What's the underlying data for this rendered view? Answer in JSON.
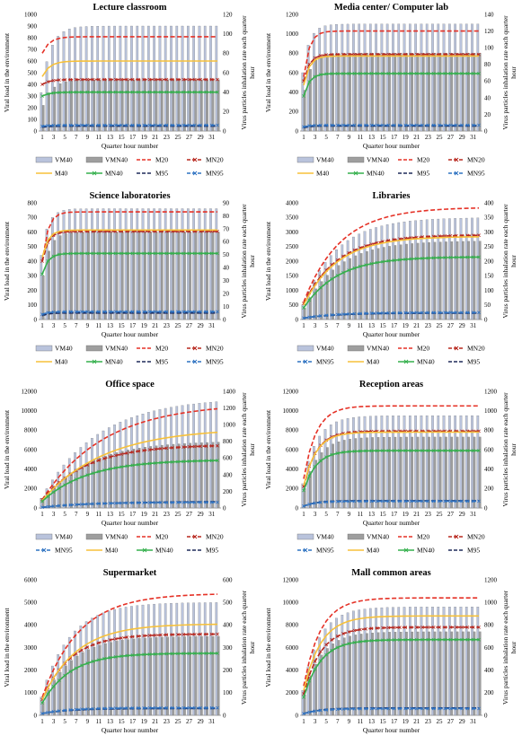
{
  "chart_data": [
    {
      "type": "bar",
      "title": "Lecture classroom",
      "xlabel": "Quarter hour number",
      "ylabel": "Viral load in the environment",
      "y2label": "Virus particles inhalation rate each quarter hour",
      "x_ticks": [
        "1",
        "3",
        "5",
        "7",
        "9",
        "11",
        "13",
        "15",
        "17",
        "19",
        "21",
        "23",
        "25",
        "27",
        "29",
        "31"
      ],
      "ylim": [
        0,
        1000
      ],
      "yticks": [
        0,
        100,
        200,
        300,
        400,
        500,
        600,
        700,
        800,
        900,
        1000
      ],
      "y2lim": [
        0,
        120
      ],
      "y2ticks": [
        0,
        20,
        40,
        60,
        80,
        100,
        120
      ],
      "legend_rows": [
        [
          "VM40",
          "VMN40",
          "M20",
          "MN20"
        ],
        [
          "M40",
          "MN40",
          "M95",
          "MN95"
        ]
      ],
      "bars": [
        {
          "name": "VM40",
          "start": 330,
          "plateau": 900,
          "rate": 1.6
        },
        {
          "name": "VMN40",
          "start": 220,
          "plateau": 440,
          "rate": 1.6
        }
      ],
      "lines": [
        {
          "name": "M20",
          "start": 80,
          "plateau": 97,
          "rate": 1.3
        },
        {
          "name": "MN20",
          "start": 48,
          "plateau": 53,
          "rate": 1.3
        },
        {
          "name": "M40",
          "start": 56,
          "plateau": 72,
          "rate": 1.3
        },
        {
          "name": "MN40",
          "start": 36,
          "plateau": 40,
          "rate": 1.3
        },
        {
          "name": "M95",
          "start": 4,
          "plateau": 5,
          "rate": 1.3
        },
        {
          "name": "MN95",
          "start": 5,
          "plateau": 6,
          "rate": 1.3
        }
      ]
    },
    {
      "type": "bar",
      "title": "Media center/ Computer lab",
      "xlabel": "Quarter hour number",
      "ylabel": "Viral load in the environment",
      "y2label": "Virus particles inhalation rate each quarter hour",
      "x_ticks": [
        "1",
        "3",
        "5",
        "7",
        "9",
        "11",
        "13",
        "15",
        "17",
        "19",
        "21",
        "23",
        "25",
        "27",
        "29",
        "31"
      ],
      "ylim": [
        0,
        1200
      ],
      "yticks": [
        0,
        200,
        400,
        600,
        800,
        1000,
        1200
      ],
      "y2lim": [
        0,
        140
      ],
      "y2ticks": [
        0,
        20,
        40,
        60,
        80,
        100,
        120,
        140
      ],
      "legend_rows": [
        [
          "VM40",
          "VMN40",
          "M20",
          "MN20"
        ],
        [
          "M40",
          "MN40",
          "M95",
          "MN95"
        ]
      ],
      "bars": [
        {
          "name": "VM40",
          "start": 600,
          "plateau": 1100,
          "rate": 1.2
        },
        {
          "name": "VMN40",
          "start": 420,
          "plateau": 800,
          "rate": 1.2
        }
      ],
      "lines": [
        {
          "name": "M20",
          "start": 65,
          "plateau": 120,
          "rate": 1.0
        },
        {
          "name": "MN20",
          "start": 60,
          "plateau": 92,
          "rate": 1.0
        },
        {
          "name": "M40",
          "start": 55,
          "plateau": 90,
          "rate": 1.0
        },
        {
          "name": "MN40",
          "start": 42,
          "plateau": 69,
          "rate": 1.0
        },
        {
          "name": "M95",
          "start": 4,
          "plateau": 6,
          "rate": 1.0
        },
        {
          "name": "MN95",
          "start": 5,
          "plateau": 7,
          "rate": 1.0
        }
      ]
    },
    {
      "type": "bar",
      "title": "Science laboratories",
      "xlabel": "Quarter hour number",
      "ylabel": "Viral load in the environment",
      "y2label": "Virus particles inhalation rate each quarter hour",
      "x_ticks": [
        "1",
        "3",
        "5",
        "7",
        "9",
        "11",
        "13",
        "15",
        "17",
        "19",
        "21",
        "23",
        "25",
        "27",
        "29",
        "31"
      ],
      "ylim": [
        0,
        800
      ],
      "yticks": [
        0,
        100,
        200,
        300,
        400,
        500,
        600,
        700,
        800
      ],
      "y2lim": [
        0,
        90
      ],
      "y2ticks": [
        0,
        10,
        20,
        30,
        40,
        50,
        60,
        70,
        80,
        90
      ],
      "legend_rows": [
        [
          "VM40",
          "VMN40",
          "M20",
          "MN20"
        ],
        [
          "M40",
          "MN40",
          "M95",
          "MN95"
        ]
      ],
      "bars": [
        {
          "name": "VM40",
          "start": 440,
          "plateau": 760,
          "rate": 1.2
        },
        {
          "name": "VMN40",
          "start": 300,
          "plateau": 600,
          "rate": 1.2
        }
      ],
      "lines": [
        {
          "name": "M20",
          "start": 45,
          "plateau": 83,
          "rate": 1.0
        },
        {
          "name": "MN20",
          "start": 45,
          "plateau": 68,
          "rate": 1.0
        },
        {
          "name": "M40",
          "start": 48,
          "plateau": 69,
          "rate": 1.0
        },
        {
          "name": "MN40",
          "start": 35,
          "plateau": 51,
          "rate": 1.0
        },
        {
          "name": "M95",
          "start": 3,
          "plateau": 5,
          "rate": 1.0
        },
        {
          "name": "MN95",
          "start": 4,
          "plateau": 6,
          "rate": 1.0
        }
      ]
    },
    {
      "type": "bar",
      "title": "Libraries",
      "xlabel": "Quarter hour number",
      "ylabel": "Viral load in the environment",
      "y2label": "Virus particles inhalation rate each quarter hour",
      "x_ticks": [
        "1",
        "3",
        "5",
        "7",
        "9",
        "11",
        "13",
        "15",
        "17",
        "19",
        "21",
        "23",
        "25",
        "27",
        "29",
        "31"
      ],
      "ylim": [
        0,
        4000
      ],
      "yticks": [
        0,
        500,
        1000,
        1500,
        2000,
        2500,
        3000,
        3500,
        4000
      ],
      "y2lim": [
        0,
        400
      ],
      "y2ticks": [
        0,
        50,
        100,
        150,
        200,
        250,
        300,
        350,
        400
      ],
      "legend_rows": [
        [
          "VM40",
          "VMN40",
          "M20",
          "MN20"
        ],
        [
          "MN95",
          "M40",
          "MN40",
          "M95"
        ]
      ],
      "bars": [
        {
          "name": "VM40",
          "start": 500,
          "plateau": 3500,
          "rate": 6.0
        },
        {
          "name": "VMN40",
          "start": 400,
          "plateau": 2700,
          "rate": 6.0
        }
      ],
      "lines": [
        {
          "name": "M20",
          "start": 60,
          "plateau": 385,
          "rate": 6.5
        },
        {
          "name": "MN20",
          "start": 55,
          "plateau": 290,
          "rate": 6.0
        },
        {
          "name": "M40",
          "start": 50,
          "plateau": 285,
          "rate": 6.0
        },
        {
          "name": "MN40",
          "start": 40,
          "plateau": 215,
          "rate": 6.0
        },
        {
          "name": "M95",
          "start": 5,
          "plateau": 22,
          "rate": 6.0
        },
        {
          "name": "MN95",
          "start": 5,
          "plateau": 24,
          "rate": 6.0
        }
      ]
    },
    {
      "type": "bar",
      "title": "Office space",
      "xlabel": "Quarter hour number",
      "ylabel": "Viral load in the environment",
      "y2label": "Virus particles inhalation rate each quarter hour",
      "x_ticks": [
        "1",
        "3",
        "5",
        "7",
        "9",
        "11",
        "13",
        "15",
        "17",
        "19",
        "21",
        "23",
        "25",
        "27",
        "29",
        "31"
      ],
      "ylim": [
        0,
        12000
      ],
      "yticks": [
        0,
        2000,
        4000,
        6000,
        8000,
        10000,
        12000
      ],
      "y2lim": [
        0,
        1400
      ],
      "y2ticks": [
        0,
        200,
        400,
        600,
        800,
        1000,
        1200,
        1400
      ],
      "legend_rows": [
        [
          "VM40",
          "VMN40",
          "M20",
          "MN20"
        ],
        [
          "MN95",
          "M40",
          "MN40",
          "M95"
        ]
      ],
      "bars": [
        {
          "name": "VM40",
          "start": 1000,
          "plateau": 11400,
          "rate": 10.0
        },
        {
          "name": "VMN40",
          "start": 800,
          "plateau": 6900,
          "rate": 8.0
        }
      ],
      "lines": [
        {
          "name": "M20",
          "start": 100,
          "plateau": 1260,
          "rate": 11.0
        },
        {
          "name": "MN20",
          "start": 100,
          "plateau": 760,
          "rate": 8.0
        },
        {
          "name": "M40",
          "start": 90,
          "plateau": 960,
          "rate": 11.0
        },
        {
          "name": "MN40",
          "start": 80,
          "plateau": 580,
          "rate": 8.0
        },
        {
          "name": "M95",
          "start": 8,
          "plateau": 78,
          "rate": 10.0
        },
        {
          "name": "MN95",
          "start": 8,
          "plateau": 70,
          "rate": 8.0
        }
      ]
    },
    {
      "type": "bar",
      "title": "Reception areas",
      "xlabel": "Quarter hour number",
      "ylabel": "Viral load in the environment",
      "y2label": "Virus particles inhalation rate each quarter hour",
      "x_ticks": [
        "1",
        "3",
        "5",
        "7",
        "9",
        "11",
        "13",
        "15",
        "17",
        "19",
        "21",
        "23",
        "25",
        "27",
        "29",
        "31"
      ],
      "ylim": [
        0,
        12000
      ],
      "yticks": [
        0,
        2000,
        4000,
        6000,
        8000,
        10000,
        12000
      ],
      "y2lim": [
        0,
        1200
      ],
      "y2ticks": [
        0,
        200,
        400,
        600,
        800,
        1000,
        1200
      ],
      "legend_rows": [
        [
          "VM40",
          "VMN40",
          "M20",
          "MN20"
        ],
        [
          "MN95",
          "M40",
          "MN40",
          "M95"
        ]
      ],
      "bars": [
        {
          "name": "VM40",
          "start": 2500,
          "plateau": 9500,
          "rate": 2.5
        },
        {
          "name": "VMN40",
          "start": 2000,
          "plateau": 7300,
          "rate": 2.5
        }
      ],
      "lines": [
        {
          "name": "M20",
          "start": 300,
          "plateau": 1050,
          "rate": 2.2
        },
        {
          "name": "MN20",
          "start": 220,
          "plateau": 790,
          "rate": 2.2
        },
        {
          "name": "M40",
          "start": 230,
          "plateau": 780,
          "rate": 2.2
        },
        {
          "name": "MN40",
          "start": 180,
          "plateau": 590,
          "rate": 2.2
        },
        {
          "name": "M95",
          "start": 20,
          "plateau": 75,
          "rate": 2.2
        },
        {
          "name": "MN95",
          "start": 20,
          "plateau": 70,
          "rate": 2.2
        }
      ]
    },
    {
      "type": "bar",
      "title": "Supermarket",
      "xlabel": "Quarter hour number",
      "ylabel": "Viral load in the environment",
      "y2label": "Virus particles inhalation rate each quarter hour",
      "x_ticks": [
        "1",
        "3",
        "5",
        "7",
        "9",
        "11",
        "13",
        "15",
        "17",
        "19",
        "21",
        "23",
        "25",
        "27",
        "29",
        "31"
      ],
      "ylim": [
        0,
        6000
      ],
      "yticks": [
        0,
        1000,
        2000,
        3000,
        4000,
        5000,
        6000
      ],
      "y2lim": [
        0,
        600
      ],
      "y2ticks": [
        0,
        100,
        200,
        300,
        400,
        500,
        600
      ],
      "legend_rows": [],
      "bars": [
        {
          "name": "VM40",
          "start": 800,
          "plateau": 5000,
          "rate": 5.0
        },
        {
          "name": "VMN40",
          "start": 600,
          "plateau": 3500,
          "rate": 5.0
        }
      ],
      "lines": [
        {
          "name": "M20",
          "start": 80,
          "plateau": 540,
          "rate": 6.5
        },
        {
          "name": "MN20",
          "start": 70,
          "plateau": 360,
          "rate": 5.0
        },
        {
          "name": "M40",
          "start": 70,
          "plateau": 405,
          "rate": 6.0
        },
        {
          "name": "MN40",
          "start": 55,
          "plateau": 275,
          "rate": 5.0
        },
        {
          "name": "M95",
          "start": 8,
          "plateau": 30,
          "rate": 5.0
        },
        {
          "name": "MN95",
          "start": 8,
          "plateau": 33,
          "rate": 5.0
        }
      ]
    },
    {
      "type": "bar",
      "title": "Mall common areas",
      "xlabel": "Quarter hour number",
      "ylabel": "Viral load in the environment",
      "y2label": "Virus particles inhalation rate each quarter hour",
      "x_ticks": [
        "1",
        "3",
        "5",
        "7",
        "9",
        "11",
        "13",
        "15",
        "17",
        "19",
        "21",
        "23",
        "25",
        "27",
        "29",
        "31"
      ],
      "ylim": [
        0,
        12000
      ],
      "yticks": [
        0,
        2000,
        4000,
        6000,
        8000,
        10000,
        12000
      ],
      "y2lim": [
        0,
        1200
      ],
      "y2ticks": [
        0,
        200,
        400,
        600,
        800,
        1000,
        1200
      ],
      "legend_rows": [],
      "bars": [
        {
          "name": "VM40",
          "start": 2200,
          "plateau": 9600,
          "rate": 3.0
        },
        {
          "name": "VMN40",
          "start": 1800,
          "plateau": 7400,
          "rate": 3.0
        }
      ],
      "lines": [
        {
          "name": "M20",
          "start": 260,
          "plateau": 1040,
          "rate": 3.0
        },
        {
          "name": "MN20",
          "start": 190,
          "plateau": 780,
          "rate": 3.0
        },
        {
          "name": "M40",
          "start": 220,
          "plateau": 880,
          "rate": 3.0
        },
        {
          "name": "MN40",
          "start": 160,
          "plateau": 670,
          "rate": 3.0
        },
        {
          "name": "M95",
          "start": 15,
          "plateau": 65,
          "rate": 3.0
        },
        {
          "name": "MN95",
          "start": 15,
          "plateau": 60,
          "rate": 3.0
        }
      ]
    }
  ],
  "styles": {
    "VM40": "#b9c3dc",
    "VMN40": "#9e9e9e",
    "M20": "#e53126",
    "MN20": "#b8281f",
    "M40": "#f7c13a",
    "MN40": "#35b04d",
    "M95": "#1f2a5a",
    "MN95": "#2f73c2"
  }
}
